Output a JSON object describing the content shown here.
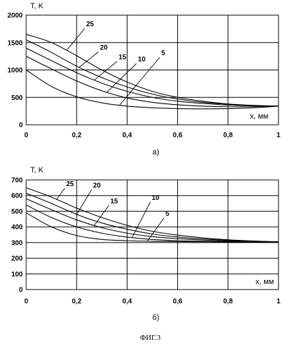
{
  "figure_caption": "ФИГ.3",
  "chart_data": [
    {
      "type": "line",
      "panel_label": "а)",
      "ylabel": "T, K",
      "xlabel": "x, мм",
      "xlim": [
        0,
        1
      ],
      "ylim": [
        0,
        2000
      ],
      "xticks": [
        "0",
        "0,2",
        "0,4",
        "0,6",
        "0,8",
        "1"
      ],
      "yticks": [
        "0",
        "500",
        "1000",
        "1500",
        "2000"
      ],
      "grid": true,
      "series": [
        {
          "name": "5",
          "x": [
            0,
            0.1,
            0.2,
            0.3,
            0.4,
            0.5,
            0.6,
            0.7,
            0.8,
            0.9,
            1.0
          ],
          "y": [
            1000,
            700,
            510,
            400,
            340,
            310,
            295,
            290,
            295,
            310,
            340
          ]
        },
        {
          "name": "10",
          "x": [
            0,
            0.1,
            0.2,
            0.3,
            0.4,
            0.5,
            0.6,
            0.7,
            0.8,
            0.9,
            1.0
          ],
          "y": [
            1250,
            1020,
            800,
            620,
            490,
            410,
            365,
            340,
            330,
            330,
            340
          ]
        },
        {
          "name": "15",
          "x": [
            0,
            0.1,
            0.2,
            0.3,
            0.4,
            0.5,
            0.6,
            0.7,
            0.8,
            0.9,
            1.0
          ],
          "y": [
            1400,
            1170,
            950,
            760,
            610,
            500,
            430,
            390,
            360,
            345,
            340
          ]
        },
        {
          "name": "20",
          "x": [
            0,
            0.1,
            0.2,
            0.3,
            0.4,
            0.5,
            0.6,
            0.7,
            0.8,
            0.9,
            1.0
          ],
          "y": [
            1550,
            1320,
            1070,
            860,
            690,
            560,
            470,
            410,
            375,
            350,
            340
          ]
        },
        {
          "name": "25",
          "x": [
            0,
            0.1,
            0.2,
            0.3,
            0.4,
            0.5,
            0.6,
            0.7,
            0.8,
            0.9,
            1.0
          ],
          "y": [
            1650,
            1500,
            1260,
            1000,
            780,
            610,
            500,
            430,
            380,
            355,
            340
          ]
        }
      ]
    },
    {
      "type": "line",
      "panel_label": "б)",
      "ylabel": "T, K",
      "xlabel": "x, мм",
      "xlim": [
        0,
        1
      ],
      "ylim": [
        0,
        700
      ],
      "xticks": [
        "0",
        "0,2",
        "0,4",
        "0,6",
        "0,8",
        "1"
      ],
      "yticks": [
        "0",
        "100",
        "200",
        "300",
        "400",
        "500",
        "600",
        "700"
      ],
      "grid": true,
      "series": [
        {
          "name": "5",
          "x": [
            0,
            0.1,
            0.2,
            0.3,
            0.4,
            0.5,
            0.6,
            0.7,
            0.8,
            0.9,
            1.0
          ],
          "y": [
            490,
            400,
            345,
            320,
            312,
            308,
            306,
            305,
            304,
            303,
            302
          ]
        },
        {
          "name": "10",
          "x": [
            0,
            0.1,
            0.2,
            0.3,
            0.4,
            0.5,
            0.6,
            0.7,
            0.8,
            0.9,
            1.0
          ],
          "y": [
            540,
            460,
            400,
            360,
            335,
            320,
            312,
            308,
            306,
            304,
            302
          ]
        },
        {
          "name": "15",
          "x": [
            0,
            0.1,
            0.2,
            0.3,
            0.4,
            0.5,
            0.6,
            0.7,
            0.8,
            0.9,
            1.0
          ],
          "y": [
            580,
            510,
            445,
            395,
            360,
            338,
            325,
            316,
            310,
            306,
            303
          ]
        },
        {
          "name": "20",
          "x": [
            0,
            0.1,
            0.2,
            0.3,
            0.4,
            0.5,
            0.6,
            0.7,
            0.8,
            0.9,
            1.0
          ],
          "y": [
            615,
            550,
            480,
            425,
            385,
            355,
            336,
            323,
            314,
            308,
            304
          ]
        },
        {
          "name": "25",
          "x": [
            0,
            0.1,
            0.2,
            0.3,
            0.4,
            0.5,
            0.6,
            0.7,
            0.8,
            0.9,
            1.0
          ],
          "y": [
            650,
            590,
            520,
            460,
            410,
            372,
            348,
            330,
            318,
            310,
            305
          ]
        }
      ]
    }
  ]
}
